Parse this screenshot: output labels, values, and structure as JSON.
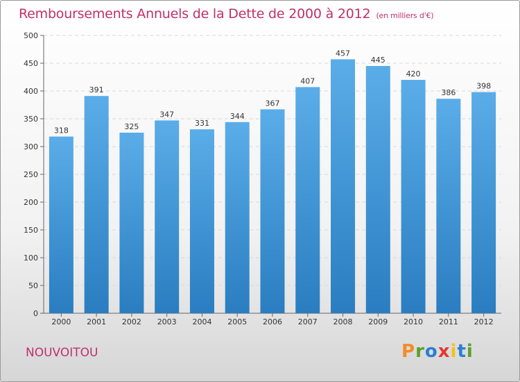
{
  "header": {
    "title": "Remboursements Annuels de la Dette de 2000 à 2012",
    "subtitle": "(en milliers d'€)"
  },
  "footer": {
    "commune": "NOUVOITOU",
    "logo_text": "Proxiti",
    "logo_colors": [
      "#f28c28",
      "#5aa02c",
      "#2a7fd4",
      "#e23b2e",
      "#f2c21b",
      "#2a7fd4",
      "#5aa02c"
    ]
  },
  "chart_data": {
    "type": "bar",
    "title": "Remboursements Annuels de la Dette de 2000 à 2012",
    "subtitle": "(en milliers d'€)",
    "categories": [
      "2000",
      "2001",
      "2002",
      "2003",
      "2004",
      "2005",
      "2006",
      "2007",
      "2008",
      "2009",
      "2010",
      "2011",
      "2012"
    ],
    "values": [
      318,
      391,
      325,
      347,
      331,
      344,
      367,
      407,
      457,
      445,
      420,
      386,
      398
    ],
    "yticks": [
      0,
      50,
      100,
      150,
      200,
      250,
      300,
      350,
      400,
      450,
      500
    ],
    "ylim": [
      0,
      500
    ],
    "grid": true,
    "bar_color_top": "#5aade8",
    "bar_color_bottom": "#2a7dc0"
  }
}
